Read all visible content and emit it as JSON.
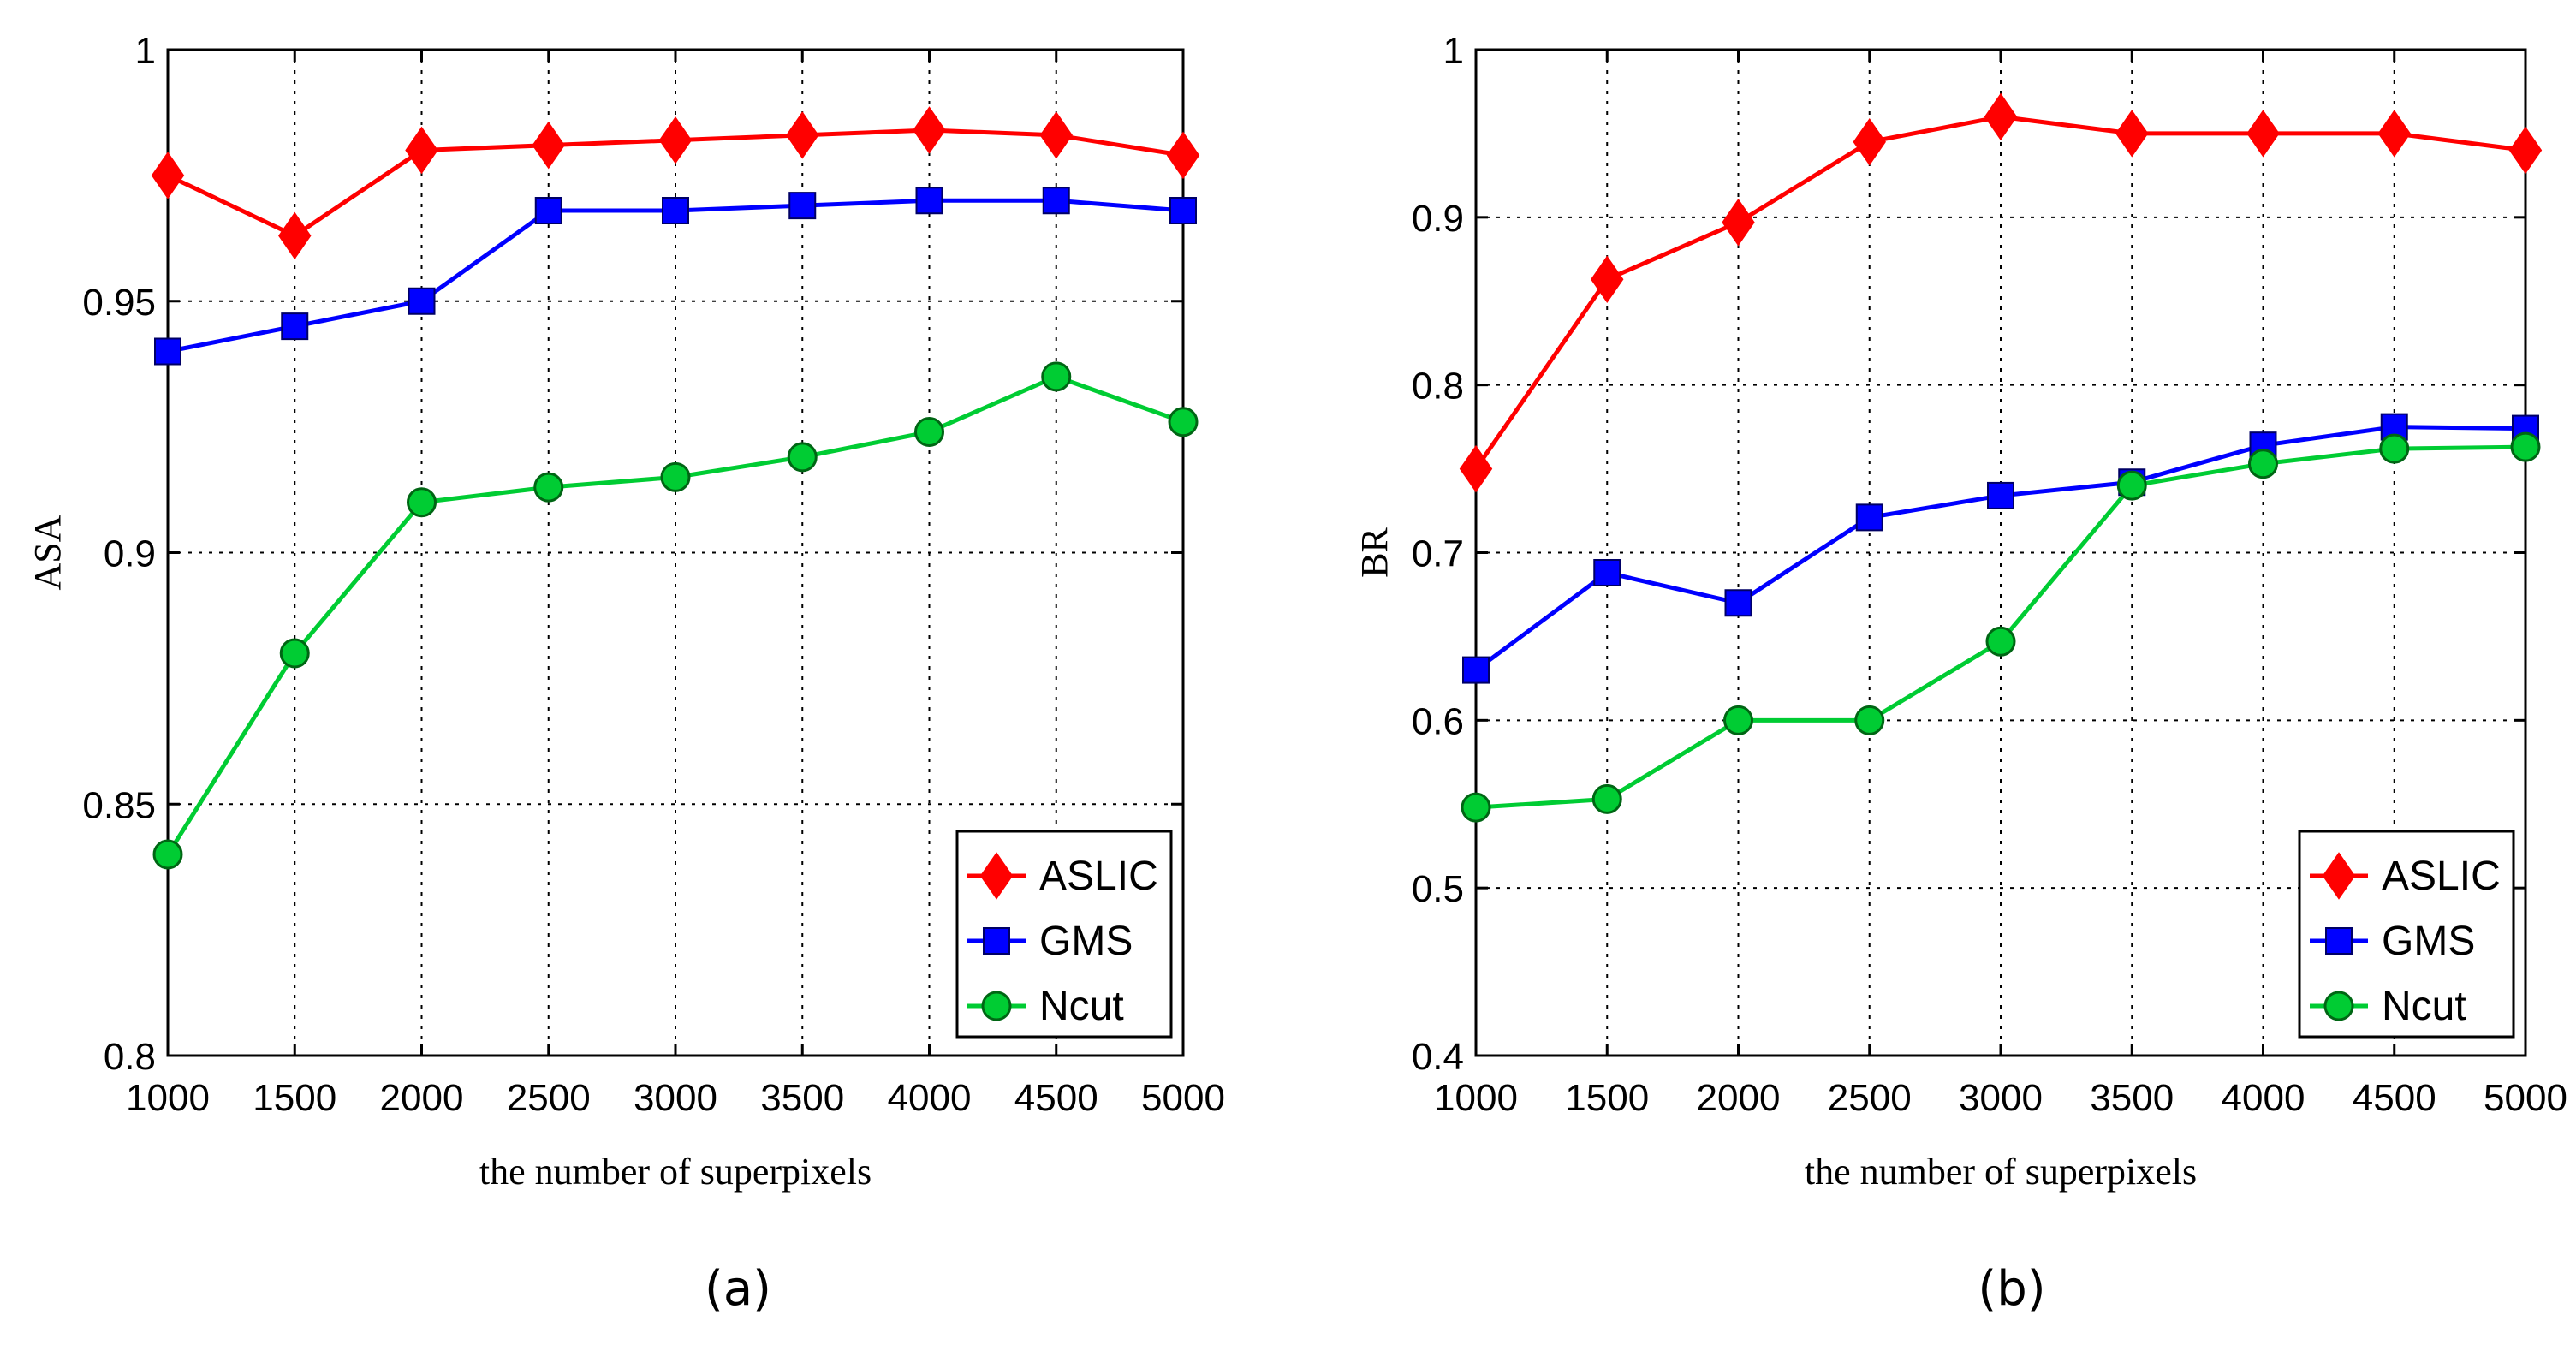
{
  "chart_data": [
    {
      "type": "line",
      "caption": "(a)",
      "title": "",
      "xlabel": "the number of superpixels",
      "ylabel": "ASA",
      "x": [
        1000,
        1500,
        2000,
        2500,
        3000,
        3500,
        4000,
        4500,
        5000
      ],
      "xlim": [
        1000,
        5000
      ],
      "ylim": [
        0.8,
        1.0
      ],
      "xticks": [
        "1000",
        "1500",
        "2000",
        "2500",
        "3000",
        "3500",
        "4000",
        "4500",
        "5000"
      ],
      "yticks": [
        "0.8",
        "0.85",
        "0.9",
        "0.95",
        "1"
      ],
      "ytick_values": [
        0.8,
        0.85,
        0.9,
        0.95,
        1.0
      ],
      "grid": true,
      "legend_position": "bottom-right",
      "series": [
        {
          "name": "ASLIC",
          "color": "#ff0000",
          "marker": "diamond",
          "values": [
            0.975,
            0.963,
            0.98,
            0.981,
            0.982,
            0.983,
            0.984,
            0.983,
            0.979
          ]
        },
        {
          "name": "GMS",
          "color": "#0000ff",
          "marker": "square",
          "values": [
            0.94,
            0.945,
            0.95,
            0.968,
            0.968,
            0.969,
            0.97,
            0.97,
            0.968
          ]
        },
        {
          "name": "Ncut",
          "color": "#00cc33",
          "marker": "circle",
          "values": [
            0.84,
            0.88,
            0.91,
            0.913,
            0.915,
            0.919,
            0.924,
            0.935,
            0.926
          ]
        }
      ]
    },
    {
      "type": "line",
      "caption": "(b)",
      "title": "",
      "xlabel": "the number of superpixels",
      "ylabel": "BR",
      "x": [
        1000,
        1500,
        2000,
        2500,
        3000,
        3500,
        4000,
        4500,
        5000
      ],
      "xlim": [
        1000,
        5000
      ],
      "ylim": [
        0.4,
        1.0
      ],
      "xticks": [
        "1000",
        "1500",
        "2000",
        "2500",
        "3000",
        "3500",
        "4000",
        "4500",
        "5000"
      ],
      "yticks": [
        "0.4",
        "0.5",
        "0.6",
        "0.7",
        "0.8",
        "0.9",
        "1"
      ],
      "ytick_values": [
        0.4,
        0.5,
        0.6,
        0.7,
        0.8,
        0.9,
        1.0
      ],
      "grid": true,
      "legend_position": "bottom-right",
      "series": [
        {
          "name": "ASLIC",
          "color": "#ff0000",
          "marker": "diamond",
          "values": [
            0.75,
            0.863,
            0.897,
            0.945,
            0.96,
            0.95,
            0.95,
            0.95,
            0.94
          ]
        },
        {
          "name": "GMS",
          "color": "#0000ff",
          "marker": "square",
          "values": [
            0.63,
            0.688,
            0.67,
            0.721,
            0.734,
            0.742,
            0.764,
            0.775,
            0.774
          ]
        },
        {
          "name": "Ncut",
          "color": "#00cc33",
          "marker": "circle",
          "values": [
            0.548,
            0.553,
            0.6,
            0.6,
            0.647,
            0.74,
            0.753,
            0.762,
            0.763
          ]
        }
      ]
    }
  ]
}
